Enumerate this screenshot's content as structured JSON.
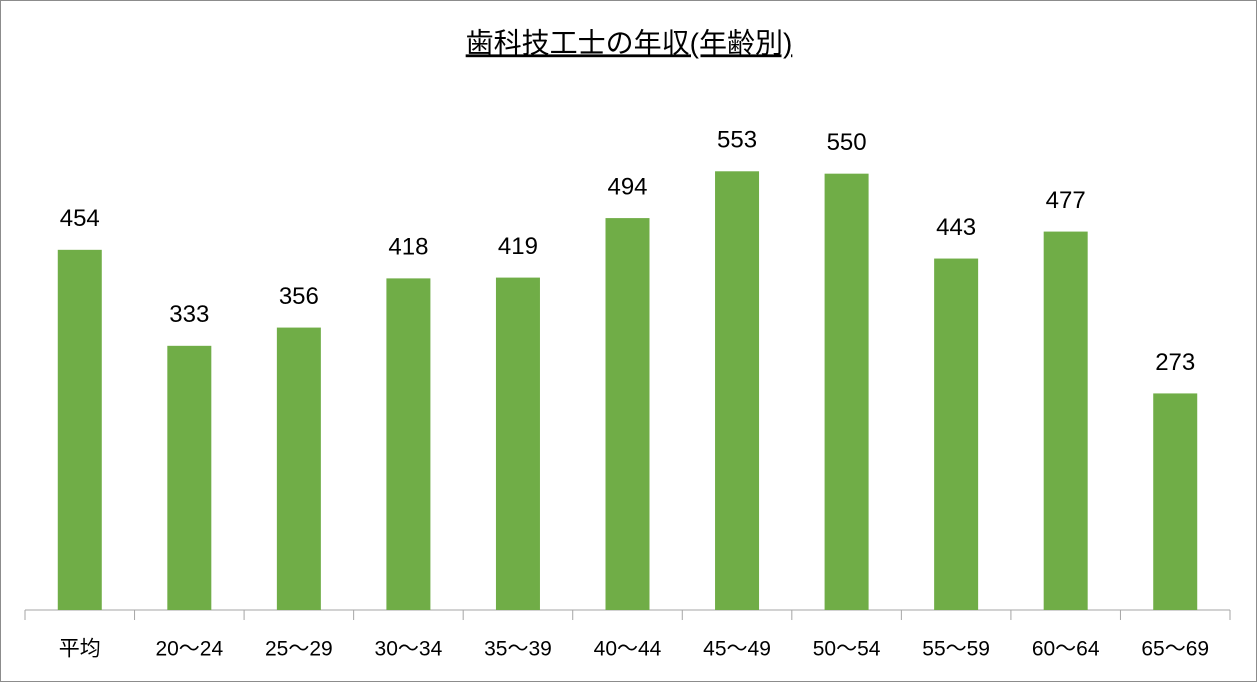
{
  "chart_data": {
    "type": "bar",
    "title": "歯科技工士の年収(年齢別)",
    "categories": [
      "平均",
      "20～24",
      "25～29",
      "30～34",
      "35～39",
      "40～44",
      "45～49",
      "50～54",
      "55～59",
      "60～64",
      "65～69"
    ],
    "values": [
      454,
      333,
      356,
      418,
      419,
      494,
      553,
      550,
      443,
      477,
      273
    ],
    "color": "#70ad47",
    "ylim": [
      0,
      600
    ]
  }
}
